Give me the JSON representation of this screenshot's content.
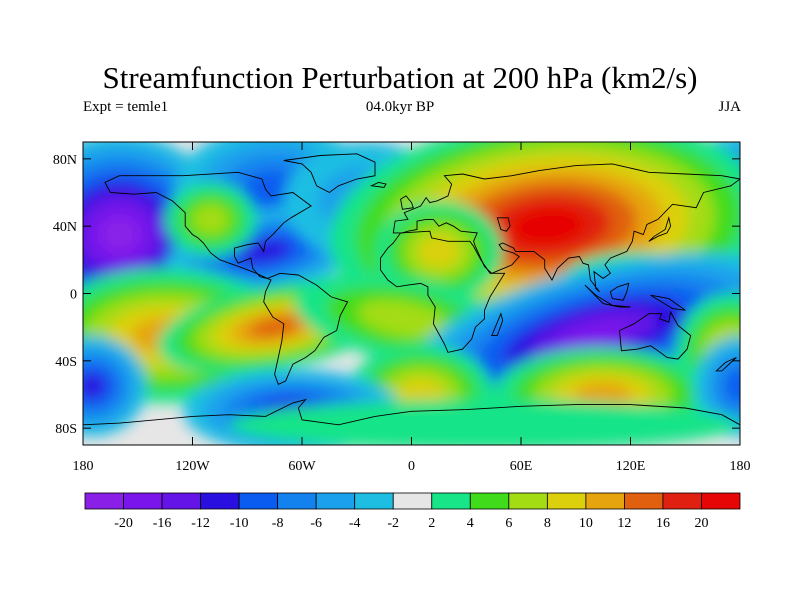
{
  "title": "Streamfunction Perturbation at 200 hPa (km2/s)",
  "left_label": "Expt = temle1",
  "center_label": "04.0kyr BP",
  "right_label": "JJA",
  "map": {
    "lon_range": [
      -180,
      180
    ],
    "lat_range": [
      -90,
      90
    ],
    "lat_ticks": [
      {
        "value": 80,
        "label": "80N"
      },
      {
        "value": 40,
        "label": "40N"
      },
      {
        "value": 0,
        "label": "0"
      },
      {
        "value": -40,
        "label": "40S"
      },
      {
        "value": -80,
        "label": "80S"
      }
    ],
    "lon_ticks": [
      {
        "value": -180,
        "label": "180"
      },
      {
        "value": -120,
        "label": "120W"
      },
      {
        "value": -60,
        "label": "60W"
      },
      {
        "value": 0,
        "label": "0"
      },
      {
        "value": 60,
        "label": "60E"
      },
      {
        "value": 120,
        "label": "120E"
      },
      {
        "value": 180,
        "label": "180"
      }
    ],
    "background_color": "#e6e6e6"
  },
  "colorbar": {
    "colors": [
      "#8a20e8",
      "#7a16ec",
      "#6414e6",
      "#2a10e0",
      "#0a5cf0",
      "#1482ee",
      "#1aa0ec",
      "#1ebee2",
      "#e6e6e6",
      "#18e488",
      "#40dc1c",
      "#a4dc14",
      "#dcd00c",
      "#e6a40e",
      "#e06010",
      "#e02010",
      "#e60606"
    ],
    "labels": [
      "-20",
      "-16",
      "-12",
      "-10",
      "-8",
      "-6",
      "-4",
      "-2",
      "2",
      "4",
      "6",
      "8",
      "10",
      "12",
      "16",
      "20"
    ]
  }
}
